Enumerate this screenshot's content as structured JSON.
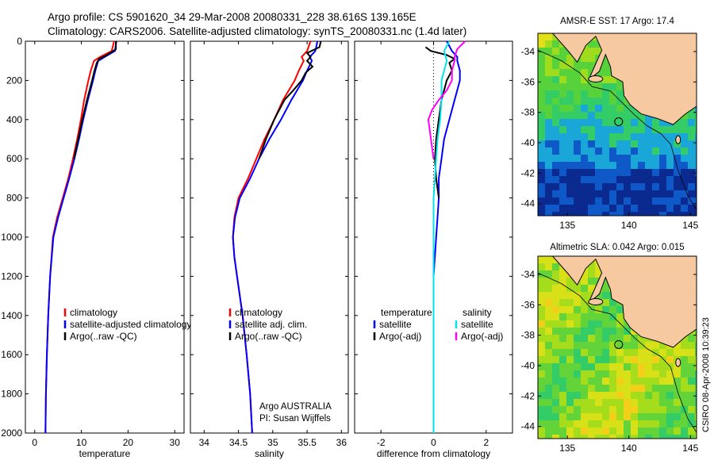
{
  "header": {
    "title_line1": "Argo profile: CS 5901620_34 29-Mar-2008 20080331_228 38.616S 139.165E",
    "title_line2": "Climatology: CARS2006. Satellite-adjusted climatology: synTS_20080331.nc (1.4d later)"
  },
  "footer_text": {
    "agency": "Argo AUSTRALIA",
    "pi": "PI: Susan Wijffels",
    "timestamp": "CSIRO 08-Apr-2008 10:39:23"
  },
  "colors": {
    "climatology": "#ff0000",
    "satellite": "#0000ff",
    "argo": "#000000",
    "salinity_satellite": "#00e5ee",
    "salinity_argo": "#ff00ff",
    "land": "#f7c9a0",
    "map_frame": "#000000"
  },
  "chart_data": [
    {
      "type": "line",
      "xlabel": "temperature",
      "ylabel": "",
      "xlim": [
        -2,
        32
      ],
      "ylim": [
        2000,
        0
      ],
      "x_ticks": [
        0,
        10,
        20,
        30
      ],
      "y_ticks": [
        0,
        200,
        400,
        600,
        800,
        1000,
        1200,
        1400,
        1600,
        1800,
        2000
      ],
      "legend": [
        "climatology",
        "satellite-adjusted climatology",
        "Argo(..raw -QC)"
      ],
      "series": [
        {
          "name": "climatology",
          "color": "#ff0000",
          "depth": [
            0,
            50,
            80,
            100,
            150,
            200,
            300,
            400,
            500,
            600,
            700,
            800,
            900,
            1000,
            1200,
            1400,
            1600,
            1800,
            2000
          ],
          "values": [
            17.0,
            16.5,
            14.0,
            12.7,
            12.0,
            11.5,
            10.6,
            9.9,
            9.1,
            8.2,
            7.2,
            6.0,
            4.8,
            3.9,
            3.3,
            2.9,
            2.6,
            2.4,
            2.3
          ]
        },
        {
          "name": "satellite-adjusted climatology",
          "color": "#0000ff",
          "depth": [
            0,
            50,
            80,
            100,
            150,
            200,
            300,
            400,
            500,
            600,
            700,
            800,
            900,
            1000,
            1200,
            1400,
            1600,
            1800,
            2000
          ],
          "values": [
            17.5,
            17.2,
            15.0,
            13.6,
            13.0,
            12.5,
            11.4,
            10.4,
            9.5,
            8.5,
            7.4,
            6.2,
            5.0,
            4.0,
            3.3,
            2.9,
            2.6,
            2.4,
            2.3
          ]
        },
        {
          "name": "Argo(..raw -QC)",
          "color": "#000000",
          "depth": [
            0,
            40,
            70,
            90,
            110,
            150,
            200,
            300,
            400,
            500,
            600
          ],
          "values": [
            17.4,
            17.4,
            15.5,
            13.8,
            13.3,
            12.8,
            12.3,
            11.2,
            10.2,
            9.3,
            8.4
          ]
        }
      ]
    },
    {
      "type": "line",
      "xlabel": "salinity",
      "ylabel": "",
      "xlim": [
        33.8,
        36.1
      ],
      "ylim": [
        2000,
        0
      ],
      "x_ticks": [
        34,
        34.5,
        35,
        35.5,
        36
      ],
      "y_ticks": [
        0,
        200,
        400,
        600,
        800,
        1000,
        1200,
        1400,
        1600,
        1800,
        2000
      ],
      "legend": [
        "climatology",
        "satellite adj. clim.",
        "Argo(..raw -QC)"
      ],
      "series": [
        {
          "name": "climatology",
          "color": "#ff0000",
          "depth": [
            0,
            50,
            80,
            100,
            150,
            200,
            300,
            400,
            500,
            600,
            700,
            800,
            900,
            1000,
            1100,
            1200,
            1400,
            1600,
            1800,
            2000
          ],
          "values": [
            35.55,
            35.5,
            35.42,
            35.45,
            35.38,
            35.32,
            35.15,
            35.02,
            34.88,
            34.76,
            34.64,
            34.5,
            34.44,
            34.42,
            34.44,
            34.48,
            34.56,
            34.62,
            34.67,
            34.7
          ]
        },
        {
          "name": "satellite adj. clim.",
          "color": "#0000ff",
          "depth": [
            0,
            50,
            80,
            100,
            150,
            200,
            300,
            400,
            500,
            600,
            700,
            800,
            900,
            1000,
            1100,
            1200,
            1400,
            1600,
            1800,
            2000
          ],
          "values": [
            35.65,
            35.62,
            35.54,
            35.57,
            35.5,
            35.44,
            35.27,
            35.12,
            34.95,
            34.8,
            34.67,
            34.52,
            34.45,
            34.42,
            34.44,
            34.48,
            34.56,
            34.62,
            34.67,
            34.7
          ]
        },
        {
          "name": "Argo(..raw -QC)",
          "color": "#000000",
          "depth": [
            0,
            30,
            60,
            80,
            100,
            130,
            160,
            200,
            250,
            300,
            400,
            500,
            600
          ],
          "values": [
            35.7,
            35.68,
            35.5,
            35.55,
            35.5,
            35.58,
            35.48,
            35.42,
            35.3,
            35.17,
            35.02,
            34.9,
            34.8
          ]
        }
      ]
    },
    {
      "type": "line",
      "xlabel": "difference from climatology",
      "ylabel": "",
      "xlim": [
        -3.0,
        3.0
      ],
      "ylim": [
        2000,
        0
      ],
      "x_ticks": [
        -2,
        0,
        2
      ],
      "y_ticks": [
        0,
        200,
        400,
        600,
        800,
        1000,
        1200,
        1400,
        1600,
        1800,
        2000
      ],
      "legend_temperature_title": "temperature",
      "legend_salinity_title": "salinity",
      "legend": [
        "satellite",
        "Argo(-adj)",
        "satellite",
        "Argo(-adj)"
      ],
      "series": [
        {
          "name": "temperature satellite",
          "color": "#0000ff",
          "depth": [
            0,
            50,
            80,
            100,
            150,
            200,
            300,
            400,
            500,
            600,
            700,
            800,
            900,
            1000,
            1100,
            1200,
            1400,
            1600,
            1800,
            2000
          ],
          "values": [
            0.5,
            0.7,
            0.9,
            0.9,
            1.0,
            1.0,
            0.8,
            0.6,
            0.4,
            0.3,
            0.2,
            0.2,
            0.15,
            0.1,
            0.05,
            0.0,
            0.0,
            0.0,
            0.0,
            0.0
          ]
        },
        {
          "name": "temperature Argo(-adj)",
          "color": "#000000",
          "depth": [
            30,
            40,
            50,
            60,
            70,
            90,
            110,
            150,
            200,
            300,
            400,
            500,
            600,
            700,
            800
          ],
          "values": [
            -0.3,
            -0.2,
            -0.1,
            0.2,
            0.5,
            0.8,
            0.6,
            0.7,
            0.5,
            0.3,
            0.2,
            0.1,
            0.05,
            0.1,
            0.2
          ]
        },
        {
          "name": "salinity satellite",
          "color": "#00e5ee",
          "depth": [
            0,
            50,
            100,
            150,
            200,
            300,
            400,
            500,
            600,
            700,
            800,
            1000,
            1200,
            1400,
            1600,
            1800,
            2000
          ],
          "values": [
            0.6,
            0.4,
            0.5,
            0.4,
            0.3,
            0.3,
            0.25,
            0.15,
            0.1,
            0.05,
            0.0,
            0.0,
            0.0,
            0.0,
            0.0,
            0.0,
            0.0
          ]
        },
        {
          "name": "salinity Argo(-adj)",
          "color": "#ff00ff",
          "depth": [
            0,
            40,
            80,
            100,
            150,
            200,
            250,
            300,
            350,
            400,
            500,
            600
          ],
          "values": [
            1.2,
            0.9,
            0.8,
            0.8,
            0.7,
            0.7,
            0.5,
            0.2,
            -0.05,
            -0.2,
            -0.1,
            0.0
          ]
        }
      ]
    }
  ],
  "maps": [
    {
      "title": "AMSR-E SST: 17 Argo: 17.4",
      "lon_ticks": [
        "135",
        "140",
        "145"
      ],
      "lat_ticks": [
        "-34",
        "-36",
        "-38",
        "-40",
        "-42",
        "-44"
      ],
      "float_position": {
        "lon": 139.165,
        "lat": -38.616
      },
      "palette": [
        "#0b2a8f",
        "#0f58c8",
        "#1aa7d8",
        "#33cc66",
        "#57d23a",
        "#9fdc1e",
        "#e3e01a"
      ]
    },
    {
      "title": "Altimetric SLA: 0.042 Argo: 0.015",
      "lon_ticks": [
        "135",
        "140",
        "145"
      ],
      "lat_ticks": [
        "-34",
        "-36",
        "-38",
        "-40",
        "-42",
        "-44"
      ],
      "float_position": {
        "lon": 139.165,
        "lat": -38.616
      },
      "palette": [
        "#33cc66",
        "#62d43a",
        "#a5dd1c",
        "#d8e018",
        "#f2cf18"
      ]
    }
  ]
}
